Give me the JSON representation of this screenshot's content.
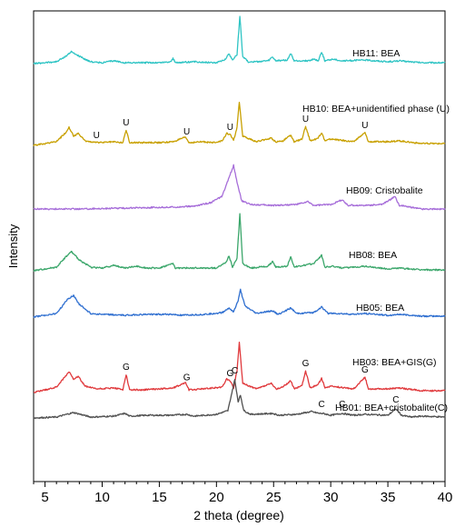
{
  "chart_data": {
    "type": "line",
    "xlabel": "2 theta (degree)",
    "ylabel": "Intensity",
    "xlim": [
      4,
      40
    ],
    "xticks": [
      5,
      10,
      15,
      20,
      25,
      30,
      35,
      40
    ],
    "grid": false,
    "legend": "none",
    "series": [
      {
        "name": "HB11: BEA",
        "color": "#2ec4c4",
        "offset": 70,
        "points": [
          [
            4,
            0
          ],
          [
            6,
            2
          ],
          [
            6.8,
            8
          ],
          [
            7.3,
            13
          ],
          [
            8,
            8
          ],
          [
            9,
            2
          ],
          [
            10,
            1
          ],
          [
            11,
            3
          ],
          [
            12,
            1
          ],
          [
            13,
            1
          ],
          [
            14,
            1
          ],
          [
            15,
            1
          ],
          [
            16,
            2
          ],
          [
            16.2,
            6
          ],
          [
            16.4,
            1
          ],
          [
            18,
            2
          ],
          [
            20,
            1
          ],
          [
            20.8,
            5
          ],
          [
            21.1,
            11
          ],
          [
            21.4,
            4
          ],
          [
            21.8,
            10
          ],
          [
            22.05,
            52
          ],
          [
            22.3,
            8
          ],
          [
            22.8,
            2
          ],
          [
            23.5,
            2
          ],
          [
            24.5,
            3
          ],
          [
            24.9,
            7
          ],
          [
            25.2,
            3
          ],
          [
            26.2,
            4
          ],
          [
            26.5,
            11
          ],
          [
            26.8,
            3
          ],
          [
            28,
            3
          ],
          [
            28.5,
            5
          ],
          [
            28.9,
            3
          ],
          [
            29.2,
            13
          ],
          [
            29.5,
            3
          ],
          [
            30.2,
            5
          ],
          [
            31,
            3
          ],
          [
            33,
            4
          ],
          [
            35,
            2
          ],
          [
            36,
            3
          ],
          [
            38,
            1
          ],
          [
            40,
            1
          ]
        ]
      },
      {
        "name": "HB10: BEA+unidentified phase (U)",
        "color": "#c8a000",
        "offset": 160,
        "points": [
          [
            4,
            0
          ],
          [
            6,
            4
          ],
          [
            6.8,
            14
          ],
          [
            7.1,
            20
          ],
          [
            7.5,
            10
          ],
          [
            7.9,
            13
          ],
          [
            8.5,
            5
          ],
          [
            9.5,
            3
          ],
          [
            11,
            4
          ],
          [
            11.8,
            3
          ],
          [
            12.1,
            17
          ],
          [
            12.4,
            3
          ],
          [
            13.5,
            3
          ],
          [
            15,
            3
          ],
          [
            16.2,
            4
          ],
          [
            17.3,
            9
          ],
          [
            17.6,
            3
          ],
          [
            18.8,
            4
          ],
          [
            19.6,
            3
          ],
          [
            20.5,
            5
          ],
          [
            20.9,
            13
          ],
          [
            21.2,
            12
          ],
          [
            21.5,
            5
          ],
          [
            21.8,
            20
          ],
          [
            22.0,
            48
          ],
          [
            22.3,
            10
          ],
          [
            23.5,
            4
          ],
          [
            24.8,
            8
          ],
          [
            25.2,
            4
          ],
          [
            25.8,
            5
          ],
          [
            26.5,
            11
          ],
          [
            26.8,
            4
          ],
          [
            27.5,
            7
          ],
          [
            27.8,
            21
          ],
          [
            28.2,
            5
          ],
          [
            28.9,
            8
          ],
          [
            29.2,
            14
          ],
          [
            29.5,
            5
          ],
          [
            30,
            7
          ],
          [
            32,
            4
          ],
          [
            33,
            14
          ],
          [
            33.3,
            4
          ],
          [
            35,
            4
          ],
          [
            36,
            5
          ],
          [
            38,
            2
          ],
          [
            40,
            2
          ]
        ]
      },
      {
        "name": "HB09: Cristobalite",
        "color": "#a66dd9",
        "offset": 230,
        "points": [
          [
            4,
            0
          ],
          [
            8,
            0
          ],
          [
            12,
            1
          ],
          [
            16,
            2
          ],
          [
            18,
            3
          ],
          [
            19.5,
            7
          ],
          [
            20.5,
            14
          ],
          [
            21.2,
            38
          ],
          [
            21.5,
            48
          ],
          [
            21.8,
            30
          ],
          [
            22.2,
            9
          ],
          [
            23,
            5
          ],
          [
            25,
            4
          ],
          [
            27,
            5
          ],
          [
            28,
            8
          ],
          [
            28.5,
            4
          ],
          [
            30,
            5
          ],
          [
            31,
            10
          ],
          [
            31.5,
            4
          ],
          [
            33,
            4
          ],
          [
            34.5,
            5
          ],
          [
            35.3,
            11
          ],
          [
            35.6,
            14
          ],
          [
            36,
            4
          ],
          [
            37,
            2
          ],
          [
            38,
            0
          ],
          [
            40,
            0
          ]
        ]
      },
      {
        "name": "HB08: BEA",
        "color": "#3aa66a",
        "offset": 298,
        "points": [
          [
            4,
            0
          ],
          [
            6,
            4
          ],
          [
            6.8,
            15
          ],
          [
            7.3,
            21
          ],
          [
            8,
            12
          ],
          [
            9,
            4
          ],
          [
            10,
            3
          ],
          [
            11,
            6
          ],
          [
            12,
            3
          ],
          [
            13,
            5
          ],
          [
            14,
            3
          ],
          [
            15,
            3
          ],
          [
            16.2,
            8
          ],
          [
            16.4,
            3
          ],
          [
            18,
            3
          ],
          [
            20,
            3
          ],
          [
            20.8,
            9
          ],
          [
            21.1,
            16
          ],
          [
            21.4,
            4
          ],
          [
            21.8,
            14
          ],
          [
            22.05,
            62
          ],
          [
            22.3,
            8
          ],
          [
            23,
            3
          ],
          [
            24.5,
            5
          ],
          [
            24.9,
            10
          ],
          [
            25.2,
            4
          ],
          [
            26.2,
            5
          ],
          [
            26.5,
            16
          ],
          [
            26.8,
            4
          ],
          [
            28.5,
            8
          ],
          [
            29.2,
            17
          ],
          [
            29.5,
            4
          ],
          [
            30.2,
            5
          ],
          [
            31,
            3
          ],
          [
            33,
            5
          ],
          [
            35,
            2
          ],
          [
            36,
            3
          ],
          [
            38,
            1
          ],
          [
            40,
            1
          ]
        ]
      },
      {
        "name": "HB05: BEA",
        "color": "#2f6fd0",
        "offset": 349,
        "points": [
          [
            4,
            0
          ],
          [
            6,
            4
          ],
          [
            7,
            20
          ],
          [
            7.5,
            24
          ],
          [
            8,
            14
          ],
          [
            9,
            4
          ],
          [
            10,
            3
          ],
          [
            12,
            2
          ],
          [
            14,
            3
          ],
          [
            16,
            3
          ],
          [
            17,
            2
          ],
          [
            19,
            3
          ],
          [
            20.5,
            5
          ],
          [
            21.1,
            10
          ],
          [
            21.5,
            6
          ],
          [
            21.9,
            18
          ],
          [
            22.1,
            30
          ],
          [
            22.5,
            12
          ],
          [
            23.5,
            4
          ],
          [
            24.9,
            7
          ],
          [
            25.4,
            3
          ],
          [
            26.5,
            10
          ],
          [
            27,
            4
          ],
          [
            28.5,
            5
          ],
          [
            29.2,
            11
          ],
          [
            29.8,
            4
          ],
          [
            30.5,
            4
          ],
          [
            32,
            3
          ],
          [
            33,
            4
          ],
          [
            35,
            2
          ],
          [
            36,
            3
          ],
          [
            38,
            1
          ],
          [
            40,
            1
          ]
        ]
      },
      {
        "name": "HB03: BEA+GIS(G)",
        "color": "#e0393c",
        "offset": 432,
        "points": [
          [
            4,
            0
          ],
          [
            6,
            6
          ],
          [
            6.8,
            18
          ],
          [
            7.1,
            23
          ],
          [
            7.5,
            15
          ],
          [
            7.9,
            18
          ],
          [
            8.5,
            7
          ],
          [
            9.5,
            4
          ],
          [
            11,
            5
          ],
          [
            11.8,
            3
          ],
          [
            12.1,
            20
          ],
          [
            12.4,
            3
          ],
          [
            13.5,
            3
          ],
          [
            15,
            4
          ],
          [
            16.2,
            5
          ],
          [
            17.3,
            11
          ],
          [
            17.6,
            3
          ],
          [
            18.8,
            4
          ],
          [
            20.5,
            6
          ],
          [
            20.9,
            15
          ],
          [
            21.2,
            13
          ],
          [
            21.5,
            5
          ],
          [
            21.8,
            24
          ],
          [
            22.0,
            55
          ],
          [
            22.3,
            10
          ],
          [
            23.5,
            4
          ],
          [
            24.8,
            10
          ],
          [
            25.2,
            4
          ],
          [
            25.8,
            6
          ],
          [
            26.5,
            13
          ],
          [
            26.8,
            4
          ],
          [
            27.5,
            8
          ],
          [
            27.8,
            24
          ],
          [
            28.2,
            5
          ],
          [
            28.9,
            9
          ],
          [
            29.2,
            16
          ],
          [
            29.5,
            5
          ],
          [
            30,
            7
          ],
          [
            32,
            4
          ],
          [
            33,
            17
          ],
          [
            33.3,
            4
          ],
          [
            35,
            4
          ],
          [
            36,
            5
          ],
          [
            38,
            2
          ],
          [
            40,
            2
          ]
        ]
      },
      {
        "name": "HB01: BEA+cristobalite(C)",
        "color": "#505050",
        "offset": 460,
        "points": [
          [
            4,
            0
          ],
          [
            6,
            1
          ],
          [
            7.5,
            6
          ],
          [
            9,
            1
          ],
          [
            11,
            2
          ],
          [
            12,
            5
          ],
          [
            12.4,
            2
          ],
          [
            14,
            3
          ],
          [
            16,
            3
          ],
          [
            17.4,
            4
          ],
          [
            18,
            2
          ],
          [
            20,
            4
          ],
          [
            21,
            8
          ],
          [
            21.3,
            25
          ],
          [
            21.6,
            42
          ],
          [
            21.9,
            18
          ],
          [
            22.1,
            25
          ],
          [
            22.4,
            8
          ],
          [
            23,
            4
          ],
          [
            24.9,
            5
          ],
          [
            25.5,
            3
          ],
          [
            27,
            4
          ],
          [
            28.3,
            7
          ],
          [
            29,
            5
          ],
          [
            29.3,
            5
          ],
          [
            30,
            3
          ],
          [
            31,
            5
          ],
          [
            32,
            3
          ],
          [
            33,
            4
          ],
          [
            35,
            3
          ],
          [
            35.7,
            10
          ],
          [
            36.2,
            3
          ],
          [
            37,
            1
          ],
          [
            38,
            2
          ],
          [
            40,
            1
          ]
        ]
      }
    ],
    "annotations": [
      {
        "series": "HB11: BEA",
        "text": "HB11: BEA"
      },
      {
        "series": "HB10: BEA+unidentified phase (U)",
        "text": "HB10: BEA+unidentified phase (U)"
      },
      {
        "series": "HB09: Cristobalite",
        "text": "HB09: Cristobalite"
      },
      {
        "series": "HB08: BEA",
        "text": "HB08: BEA"
      },
      {
        "series": "HB05: BEA",
        "text": "HB05: BEA"
      },
      {
        "series": "HB03: BEA+GIS(G)",
        "text": "HB03: BEA+GIS(G)"
      },
      {
        "series": "HB01: BEA+cristobalite(C)",
        "text": "HB01: BEA+cristobalite(C)"
      }
    ],
    "peak_markers": [
      {
        "text": "U",
        "x": 9.5,
        "series": "HB10: BEA+unidentified phase (U)"
      },
      {
        "text": "U",
        "x": 12.1,
        "series": "HB10: BEA+unidentified phase (U)"
      },
      {
        "text": "U",
        "x": 17.4,
        "series": "HB10: BEA+unidentified phase (U)"
      },
      {
        "text": "U",
        "x": 21.2,
        "series": "HB10: BEA+unidentified phase (U)"
      },
      {
        "text": "U",
        "x": 27.8,
        "series": "HB10: BEA+unidentified phase (U)"
      },
      {
        "text": "U",
        "x": 33.0,
        "series": "HB10: BEA+unidentified phase (U)"
      },
      {
        "text": "G",
        "x": 12.1,
        "series": "HB03: BEA+GIS(G)"
      },
      {
        "text": "G",
        "x": 17.4,
        "series": "HB03: BEA+GIS(G)"
      },
      {
        "text": "G",
        "x": 21.2,
        "series": "HB03: BEA+GIS(G)"
      },
      {
        "text": "G",
        "x": 27.8,
        "series": "HB03: BEA+GIS(G)"
      },
      {
        "text": "G",
        "x": 33.0,
        "series": "HB03: BEA+GIS(G)"
      },
      {
        "text": "C",
        "x": 21.6,
        "series": "HB01: BEA+cristobalite(C)"
      },
      {
        "text": "C",
        "x": 29.2,
        "series": "HB01: BEA+cristobalite(C)"
      },
      {
        "text": "C",
        "x": 31.0,
        "series": "HB01: BEA+cristobalite(C)"
      },
      {
        "text": "C",
        "x": 35.7,
        "series": "HB01: BEA+cristobalite(C)"
      }
    ]
  }
}
